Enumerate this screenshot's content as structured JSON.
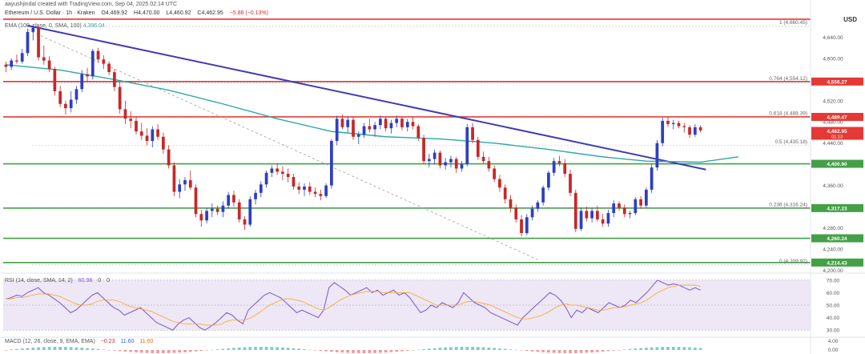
{
  "header": {
    "author_line": "aayushjindal created with TradingView.com, Sep 04, 2025 02:14 UTC",
    "symbol": "Ethereum / U.S. Dollar · 1h · Kraken",
    "open": "O4,469.92",
    "high": "H4,470.00",
    "low": "L4,460.92",
    "close": "C4,462.95",
    "change": "−5.88 (−0.13%)",
    "ema_label": "EMA (100, close, 0, SMA, 100)",
    "ema_value": "4,396.04",
    "currency": "USD"
  },
  "chart_data": {
    "type": "candlestick",
    "ylim": [
      4196,
      4680
    ],
    "y_ticks": [
      4640,
      4600,
      4560,
      4520,
      4480,
      4440,
      4400,
      4360,
      4320,
      4280,
      4240,
      4200
    ],
    "candles": [
      [
        4588,
        4594,
        4574,
        4584
      ],
      [
        4584,
        4600,
        4578,
        4596
      ],
      [
        4596,
        4607,
        4590,
        4594
      ],
      [
        4594,
        4618,
        4590,
        4610
      ],
      [
        4610,
        4656,
        4604,
        4650
      ],
      [
        4650,
        4664,
        4634,
        4658
      ],
      [
        4658,
        4662,
        4596,
        4602
      ],
      [
        4602,
        4624,
        4588,
        4596
      ],
      [
        4596,
        4604,
        4574,
        4580
      ],
      [
        4580,
        4584,
        4530,
        4538
      ],
      [
        4538,
        4548,
        4508,
        4514
      ],
      [
        4514,
        4520,
        4494,
        4506
      ],
      [
        4506,
        4538,
        4498,
        4522
      ],
      [
        4522,
        4548,
        4514,
        4542
      ],
      [
        4542,
        4578,
        4536,
        4570
      ],
      [
        4570,
        4582,
        4556,
        4566
      ],
      [
        4566,
        4618,
        4560,
        4614
      ],
      [
        4614,
        4620,
        4592,
        4598
      ],
      [
        4598,
        4606,
        4580,
        4590
      ],
      [
        4590,
        4594,
        4568,
        4574
      ],
      [
        4574,
        4580,
        4538,
        4546
      ],
      [
        4546,
        4556,
        4496,
        4504
      ],
      [
        4504,
        4520,
        4476,
        4486
      ],
      [
        4486,
        4500,
        4468,
        4482
      ],
      [
        4482,
        4490,
        4456,
        4462
      ],
      [
        4462,
        4478,
        4446,
        4454
      ],
      [
        4454,
        4468,
        4436,
        4444
      ],
      [
        4444,
        4472,
        4432,
        4466
      ],
      [
        4466,
        4476,
        4446,
        4452
      ],
      [
        4452,
        4460,
        4420,
        4428
      ],
      [
        4428,
        4436,
        4392,
        4398
      ],
      [
        4398,
        4404,
        4340,
        4348
      ],
      [
        4348,
        4372,
        4336,
        4362
      ],
      [
        4362,
        4376,
        4350,
        4370
      ],
      [
        4370,
        4388,
        4352,
        4356
      ],
      [
        4356,
        4362,
        4300,
        4306
      ],
      [
        4306,
        4314,
        4282,
        4294
      ],
      [
        4294,
        4318,
        4288,
        4312
      ],
      [
        4312,
        4326,
        4300,
        4316
      ],
      [
        4316,
        4322,
        4304,
        4310
      ],
      [
        4310,
        4330,
        4300,
        4322
      ],
      [
        4322,
        4348,
        4316,
        4342
      ],
      [
        4342,
        4350,
        4320,
        4328
      ],
      [
        4328,
        4334,
        4290,
        4296
      ],
      [
        4296,
        4302,
        4276,
        4286
      ],
      [
        4286,
        4340,
        4282,
        4334
      ],
      [
        4334,
        4352,
        4324,
        4346
      ],
      [
        4346,
        4368,
        4338,
        4362
      ],
      [
        4362,
        4388,
        4356,
        4384
      ],
      [
        4384,
        4398,
        4376,
        4392
      ],
      [
        4392,
        4402,
        4380,
        4386
      ],
      [
        4386,
        4396,
        4370,
        4382
      ],
      [
        4382,
        4392,
        4366,
        4376
      ],
      [
        4376,
        4382,
        4352,
        4358
      ],
      [
        4358,
        4366,
        4344,
        4352
      ],
      [
        4352,
        4364,
        4340,
        4358
      ],
      [
        4358,
        4366,
        4342,
        4348
      ],
      [
        4348,
        4356,
        4338,
        4344
      ],
      [
        4344,
        4352,
        4332,
        4340
      ],
      [
        4340,
        4364,
        4336,
        4360
      ],
      [
        4360,
        4448,
        4354,
        4444
      ],
      [
        4444,
        4492,
        4436,
        4486
      ],
      [
        4486,
        4494,
        4466,
        4470
      ],
      [
        4470,
        4490,
        4460,
        4484
      ],
      [
        4484,
        4490,
        4446,
        4452
      ],
      [
        4452,
        4462,
        4438,
        4456
      ],
      [
        4456,
        4478,
        4450,
        4472
      ],
      [
        4472,
        4486,
        4460,
        4466
      ],
      [
        4466,
        4480,
        4452,
        4474
      ],
      [
        4474,
        4492,
        4466,
        4486
      ],
      [
        4486,
        4490,
        4462,
        4468
      ],
      [
        4468,
        4484,
        4458,
        4478
      ],
      [
        4478,
        4492,
        4470,
        4486
      ],
      [
        4486,
        4490,
        4464,
        4470
      ],
      [
        4470,
        4486,
        4462,
        4480
      ],
      [
        4480,
        4490,
        4466,
        4472
      ],
      [
        4472,
        4476,
        4444,
        4450
      ],
      [
        4450,
        4456,
        4400,
        4406
      ],
      [
        4406,
        4420,
        4394,
        4410
      ],
      [
        4410,
        4428,
        4400,
        4422
      ],
      [
        4422,
        4426,
        4392,
        4398
      ],
      [
        4398,
        4412,
        4390,
        4404
      ],
      [
        4404,
        4416,
        4394,
        4410
      ],
      [
        4410,
        4414,
        4384,
        4392
      ],
      [
        4392,
        4406,
        4386,
        4400
      ],
      [
        4400,
        4476,
        4396,
        4470
      ],
      [
        4470,
        4478,
        4440,
        4446
      ],
      [
        4446,
        4452,
        4408,
        4414
      ],
      [
        4414,
        4424,
        4402,
        4406
      ],
      [
        4406,
        4414,
        4386,
        4392
      ],
      [
        4392,
        4398,
        4366,
        4372
      ],
      [
        4372,
        4380,
        4348,
        4356
      ],
      [
        4356,
        4362,
        4326,
        4334
      ],
      [
        4334,
        4342,
        4310,
        4318
      ],
      [
        4318,
        4324,
        4290,
        4296
      ],
      [
        4296,
        4304,
        4264,
        4270
      ],
      [
        4270,
        4306,
        4266,
        4300
      ],
      [
        4300,
        4322,
        4294,
        4316
      ],
      [
        4316,
        4332,
        4310,
        4328
      ],
      [
        4328,
        4360,
        4322,
        4356
      ],
      [
        4356,
        4388,
        4350,
        4384
      ],
      [
        4384,
        4412,
        4378,
        4406
      ],
      [
        4406,
        4416,
        4396,
        4402
      ],
      [
        4402,
        4410,
        4376,
        4382
      ],
      [
        4382,
        4390,
        4340,
        4346
      ],
      [
        4346,
        4352,
        4272,
        4278
      ],
      [
        4278,
        4318,
        4274,
        4312
      ],
      [
        4312,
        4320,
        4292,
        4298
      ],
      [
        4298,
        4318,
        4290,
        4312
      ],
      [
        4312,
        4322,
        4292,
        4296
      ],
      [
        4296,
        4306,
        4282,
        4288
      ],
      [
        4288,
        4314,
        4282,
        4308
      ],
      [
        4308,
        4332,
        4300,
        4326
      ],
      [
        4326,
        4330,
        4312,
        4318
      ],
      [
        4318,
        4324,
        4300,
        4306
      ],
      [
        4306,
        4312,
        4298,
        4308
      ],
      [
        4308,
        4338,
        4304,
        4334
      ],
      [
        4334,
        4340,
        4316,
        4322
      ],
      [
        4322,
        4356,
        4318,
        4352
      ],
      [
        4352,
        4400,
        4346,
        4394
      ],
      [
        4394,
        4446,
        4388,
        4440
      ],
      [
        4440,
        4488,
        4434,
        4482
      ],
      [
        4482,
        4490,
        4470,
        4476
      ],
      [
        4476,
        4484,
        4466,
        4478
      ],
      [
        4478,
        4482,
        4468,
        4472
      ],
      [
        4472,
        4478,
        4460,
        4470
      ],
      [
        4470,
        4474,
        4450,
        4456
      ],
      [
        4456,
        4476,
        4452,
        4470
      ],
      [
        4470,
        4474,
        4460,
        4464
      ]
    ],
    "ema100": [
      [
        0,
        4588
      ],
      [
        10,
        4578
      ],
      [
        20,
        4560
      ],
      [
        30,
        4540
      ],
      [
        40,
        4514
      ],
      [
        50,
        4486
      ],
      [
        60,
        4462
      ],
      [
        70,
        4452
      ],
      [
        80,
        4448
      ],
      [
        90,
        4440
      ],
      [
        100,
        4428
      ],
      [
        110,
        4414
      ],
      [
        118,
        4406
      ],
      [
        128,
        4404
      ],
      [
        135,
        4414
      ]
    ],
    "trend_line": {
      "start": [
        4,
        4662
      ],
      "end": [
        129,
        4390
      ]
    },
    "dashed_line": {
      "start": [
        4,
        4654
      ],
      "end": [
        98,
        4220
      ]
    },
    "horizontal_levels": [
      {
        "value": 4674,
        "color": "#e53935"
      },
      {
        "value": 4556.27,
        "color": "#e53935"
      },
      {
        "value": 4489.47,
        "color": "#e53935"
      },
      {
        "value": 4400.9,
        "color": "#43a047"
      },
      {
        "value": 4317.23,
        "color": "#43a047"
      },
      {
        "value": 4260.24,
        "color": "#43a047"
      },
      {
        "value": 4214.43,
        "color": "#43a047"
      }
    ],
    "fib_levels": [
      {
        "value": 4660.45,
        "label": "1 (4,660.45)"
      },
      {
        "value": 4554.12,
        "label": "0.764 (4,554.12)"
      },
      {
        "value": 4488.39,
        "label": "0.618 (4,488.39)"
      },
      {
        "value": 4435.18,
        "label": "0.5 (4,435.18)"
      },
      {
        "value": 4316.24,
        "label": "0.236 (4,316.24)"
      },
      {
        "value": 4209.92,
        "label": "0 (4,209.92)"
      }
    ],
    "price_labels": [
      {
        "value": 4556.27,
        "label": "4,556.27",
        "color": "#e53935"
      },
      {
        "value": 4489.47,
        "label": "4,489.47",
        "color": "#e53935"
      },
      {
        "value": 4462.95,
        "label": "4,462.95",
        "sub": "01:13",
        "color": "#e53935"
      },
      {
        "value": 4400.9,
        "label": "4,400.90",
        "color": "#43a047"
      },
      {
        "value": 4317.23,
        "label": "4,317.23",
        "color": "#43a047"
      },
      {
        "value": 4260.24,
        "label": "4,260.24",
        "color": "#43a047"
      },
      {
        "value": 4214.43,
        "label": "4,214.43",
        "color": "#43a047"
      }
    ],
    "rsi": {
      "ylim": [
        25,
        75
      ],
      "ticks": [
        70,
        60,
        50,
        40,
        30
      ],
      "band": [
        30,
        70
      ],
      "values": [
        55,
        56,
        58,
        57,
        60,
        62,
        64,
        60,
        58,
        55,
        52,
        48,
        44,
        46,
        50,
        54,
        58,
        60,
        56,
        52,
        48,
        46,
        42,
        44,
        46,
        48,
        44,
        40,
        36,
        34,
        32,
        30,
        35,
        38,
        40,
        36,
        32,
        30,
        33,
        36,
        40,
        44,
        42,
        38,
        35,
        46,
        50,
        54,
        58,
        60,
        58,
        56,
        52,
        48,
        44,
        46,
        44,
        42,
        40,
        46,
        64,
        68,
        65,
        62,
        58,
        60,
        62,
        64,
        60,
        62,
        58,
        60,
        62,
        58,
        60,
        56,
        50,
        44,
        46,
        50,
        48,
        52,
        50,
        48,
        52,
        60,
        56,
        52,
        50,
        48,
        44,
        42,
        40,
        38,
        36,
        34,
        40,
        44,
        48,
        52,
        56,
        60,
        58,
        54,
        48,
        40,
        46,
        44,
        48,
        46,
        44,
        48,
        52,
        50,
        48,
        50,
        54,
        52,
        56,
        60,
        65,
        70,
        68,
        66,
        67,
        66,
        64,
        62,
        64,
        62
      ],
      "sma": [
        55,
        55,
        56,
        56,
        57,
        58,
        59,
        59,
        59,
        58,
        57,
        55,
        53,
        51,
        50,
        50,
        51,
        53,
        54,
        54,
        54,
        53,
        51,
        49,
        48,
        47,
        46,
        45,
        43,
        41,
        39,
        37,
        36,
        35,
        35,
        35,
        35,
        34,
        34,
        34,
        35,
        37,
        38,
        38,
        38,
        39,
        41,
        44,
        47,
        50,
        52,
        54,
        55,
        55,
        54,
        53,
        51,
        49,
        47,
        46,
        48,
        51,
        54,
        56,
        58,
        59,
        60,
        61,
        61,
        61,
        60,
        60,
        60,
        60,
        60,
        60,
        58,
        56,
        54,
        52,
        50,
        50,
        50,
        50,
        50,
        52,
        53,
        53,
        52,
        51,
        50,
        48,
        46,
        44,
        42,
        40,
        39,
        39,
        40,
        41,
        43,
        45,
        48,
        50,
        51,
        50,
        50,
        49,
        48,
        47,
        46,
        46,
        47,
        48,
        48,
        49,
        50,
        51,
        52,
        54,
        57,
        60,
        62,
        64,
        65,
        66,
        66,
        66,
        66,
        65
      ],
      "labels": [
        "RSI (14, close, SMA, 14, 2)",
        "60.98",
        "0",
        "0"
      ],
      "tick_labels": [
        "70.00",
        "60.00",
        "50.00",
        "40.00",
        "30.00"
      ]
    },
    "macd": {
      "labels": [
        "MACD (12, 26, close, 9, EMA, EMA)",
        "−0.23",
        "11.60",
        "11.60"
      ],
      "tick_labels": [
        "4.00",
        "0.00"
      ]
    }
  }
}
